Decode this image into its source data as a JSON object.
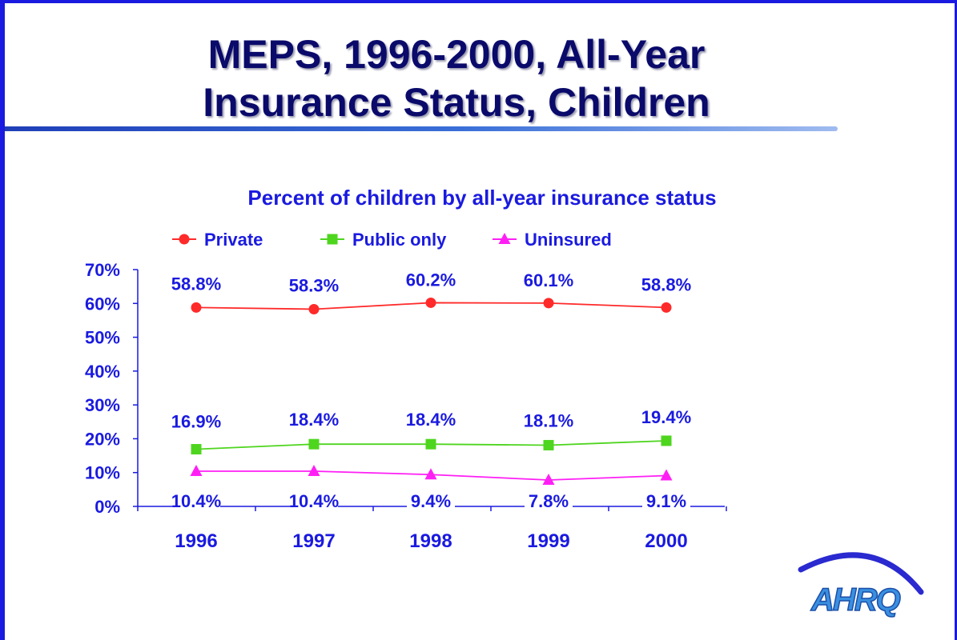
{
  "slide": {
    "title_line1": "MEPS, 1996-2000, All-Year",
    "title_line2": "Insurance Status, Children",
    "logo_text": "AHRQ"
  },
  "colors": {
    "accent_blue": "#1a1ae0",
    "title_navy": "#0a0a6b",
    "private": "#ff2a2a",
    "public_only": "#4ed51e",
    "uninsured": "#ff1ff5"
  },
  "chart_data": {
    "type": "line",
    "title": "Percent of children by all-year insurance status",
    "categories": [
      "1996",
      "1997",
      "1998",
      "1999",
      "2000"
    ],
    "ylim": [
      0,
      70
    ],
    "yticks": [
      "0%",
      "10%",
      "20%",
      "30%",
      "40%",
      "50%",
      "60%",
      "70%"
    ],
    "legend_position": "top",
    "grid": false,
    "series": [
      {
        "name": "Private",
        "marker": "circle",
        "values": [
          58.8,
          58.3,
          60.2,
          60.1,
          58.8
        ],
        "labels": [
          "58.8%",
          "58.3%",
          "60.2%",
          "60.1%",
          "58.8%"
        ]
      },
      {
        "name": "Public only",
        "marker": "square",
        "values": [
          16.9,
          18.4,
          18.4,
          18.1,
          19.4
        ],
        "labels": [
          "16.9%",
          "18.4%",
          "18.4%",
          "18.1%",
          "19.4%"
        ]
      },
      {
        "name": "Uninsured",
        "marker": "triangle",
        "values": [
          10.4,
          10.4,
          9.4,
          7.8,
          9.1
        ],
        "labels": [
          "10.4%",
          "10.4%",
          "9.4%",
          "7.8%",
          "9.1%"
        ]
      }
    ]
  }
}
